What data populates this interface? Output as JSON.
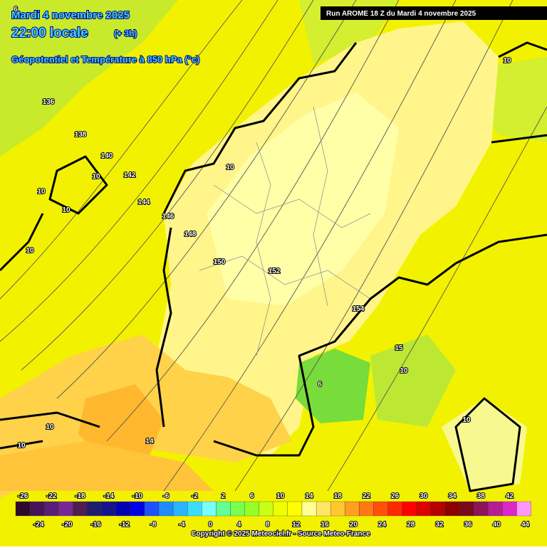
{
  "header": {
    "date": "Mardi 4 novembre 2025",
    "time": "22:00 locale",
    "offset": "(+ 3h)",
    "field": "Géopotentiel et Température à 850 hPa (°c)",
    "run": "Run AROME 18 Z du Mardi 4 novembre 2025"
  },
  "map_labels": [
    "6",
    "136",
    "138",
    "140",
    "142",
    "144",
    "146",
    "148",
    "150",
    "152",
    "154",
    "15",
    "10",
    "10",
    "10",
    "10",
    "10",
    "10",
    "10",
    "10",
    "10",
    "10",
    "6",
    "14"
  ],
  "scale": {
    "values": [
      -26,
      -24,
      -22,
      -20,
      -18,
      -16,
      -14,
      -12,
      -10,
      -8,
      -6,
      -4,
      -2,
      0,
      2,
      4,
      6,
      8,
      10,
      12,
      14,
      16,
      18,
      20,
      22,
      24,
      26,
      28,
      30,
      32,
      34,
      36,
      38,
      40,
      42,
      44
    ],
    "colors": [
      "#2d0a2d",
      "#46145a",
      "#5a1e78",
      "#782896",
      "#501e50",
      "#1e1e6e",
      "#14148c",
      "#0000b4",
      "#0000e6",
      "#1e50ff",
      "#1e8cff",
      "#28b4ff",
      "#3cdcff",
      "#78ffff",
      "#64ff96",
      "#78ff50",
      "#96ff28",
      "#c8ff14",
      "#f0ff00",
      "#ffff00",
      "#ffff96",
      "#ffe664",
      "#ffc832",
      "#ffa01e",
      "#ff7814",
      "#ff500a",
      "#ff2800",
      "#ff0000",
      "#dc0000",
      "#b40000",
      "#8c0000",
      "#780a1e",
      "#8c145a",
      "#b41e96",
      "#dc28c8",
      "#ff96ff"
    ]
  },
  "footer": {
    "copyright": "Copyright © 2025 Meteociel.fr - Source Meteo-France"
  }
}
